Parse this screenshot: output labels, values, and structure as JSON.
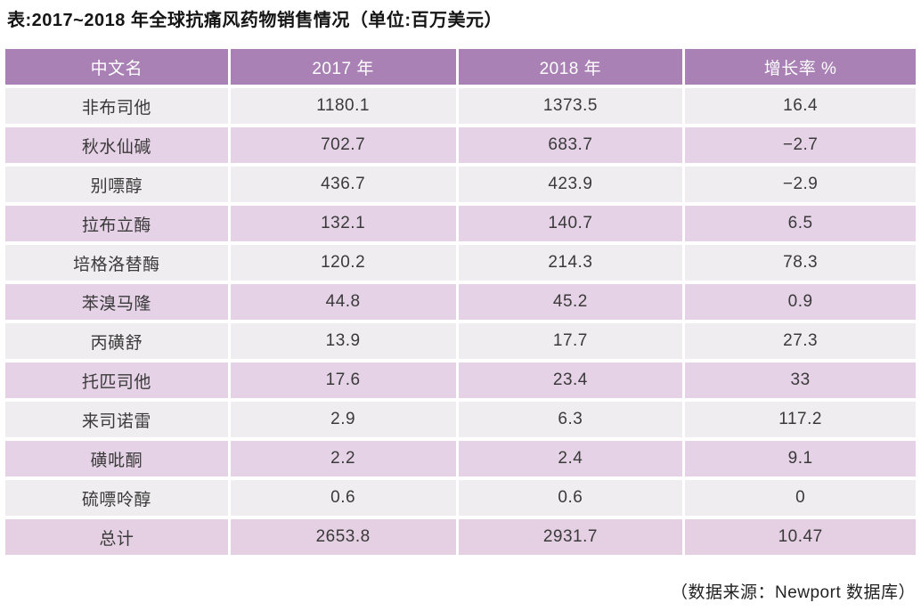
{
  "title": "表:2017~2018 年全球抗痛风药物销售情况（单位:百万美元）",
  "source_note": "（数据来源：Newport 数据库）",
  "colors": {
    "header_bg": "#a981b5",
    "header_text": "#ffffff",
    "row_light_bg": "#efedef",
    "row_lavender_bg": "#e5d2e6",
    "total_row_bg": "#e4cfe3",
    "cell_text": "#3a3a3a"
  },
  "chart_data": {
    "type": "table",
    "title": "表:2017~2018 年全球抗痛风药物销售情况（单位:百万美元）",
    "columns": [
      "中文名",
      "2017 年",
      "2018 年",
      "增长率 %"
    ],
    "rows": [
      [
        "非布司他",
        "1180.1",
        "1373.5",
        "16.4"
      ],
      [
        "秋水仙碱",
        "702.7",
        "683.7",
        "−2.7"
      ],
      [
        "别嘌醇",
        "436.7",
        "423.9",
        "−2.9"
      ],
      [
        "拉布立酶",
        "132.1",
        "140.7",
        "6.5"
      ],
      [
        "培格洛替酶",
        "120.2",
        "214.3",
        "78.3"
      ],
      [
        "苯溴马隆",
        "44.8",
        "45.2",
        "0.9"
      ],
      [
        "丙磺舒",
        "13.9",
        "17.7",
        "27.3"
      ],
      [
        "托匹司他",
        "17.6",
        "23.4",
        "33"
      ],
      [
        "来司诺雷",
        "2.9",
        "6.3",
        "117.2"
      ],
      [
        "磺吡酮",
        "2.2",
        "2.4",
        "9.1"
      ],
      [
        "硫嘌呤醇",
        "0.6",
        "0.6",
        "0"
      ],
      [
        "总计",
        "2653.8",
        "2931.7",
        "10.47"
      ]
    ],
    "total_row": [
      "总计",
      "2653.8",
      "2931.7",
      "10.47"
    ],
    "source": "（数据来源：Newport 数据库）"
  }
}
